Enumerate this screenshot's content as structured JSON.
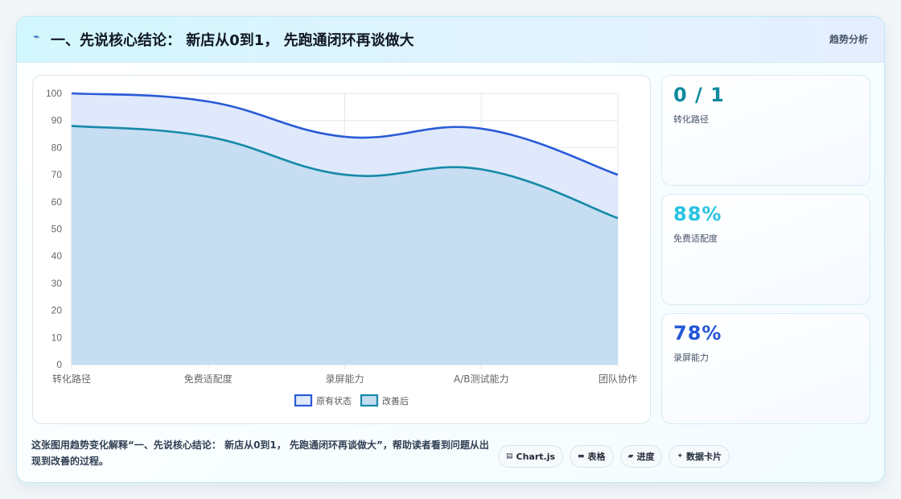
{
  "header": {
    "icon": "lightning-icon",
    "title": "一、先说核心结论： 新店从0到1， 先跑通闭环再谈做大",
    "tag": "趋势分析"
  },
  "stats": [
    {
      "value": "0 / 1",
      "label": "转化路径",
      "color": "#0e8a9e"
    },
    {
      "value": "88%",
      "label": "免费适配度",
      "color": "#27c4e0"
    },
    {
      "value": "78%",
      "label": "录屏能力",
      "color": "#2457d6"
    }
  ],
  "footer": {
    "text": "这张图用趋势变化解释“一、先说核心结论： 新店从0到1， 先跑通闭环再谈做大”，帮助读者看到问题从出现到改善的过程。"
  },
  "chips": [
    {
      "icon": "chart-icon",
      "glyph": "▤",
      "label": "Chart.js"
    },
    {
      "icon": "table-icon",
      "glyph": "▬",
      "label": "表格"
    },
    {
      "icon": "progress-icon",
      "glyph": "▰",
      "label": "进度"
    },
    {
      "icon": "sparkle-icon",
      "glyph": "✦",
      "label": "数据卡片"
    }
  ],
  "chart_data": {
    "type": "area",
    "categories": [
      "转化路径",
      "免费适配度",
      "录屏能力",
      "A/B测试能力",
      "团队协作"
    ],
    "series": [
      {
        "name": "原有状态",
        "values": [
          100,
          97,
          84,
          87,
          70
        ],
        "color": "#2a5bd7",
        "fill": "#dfe9fb"
      },
      {
        "name": "改善后",
        "values": [
          88,
          84,
          70,
          72,
          54
        ],
        "color": "#168aa8",
        "fill": "#c4dcf1"
      }
    ],
    "ylim": [
      0,
      100
    ],
    "yticks": [
      0,
      10,
      20,
      30,
      40,
      50,
      60,
      70,
      80,
      90,
      100
    ],
    "grid": true,
    "legend_position": "bottom"
  }
}
